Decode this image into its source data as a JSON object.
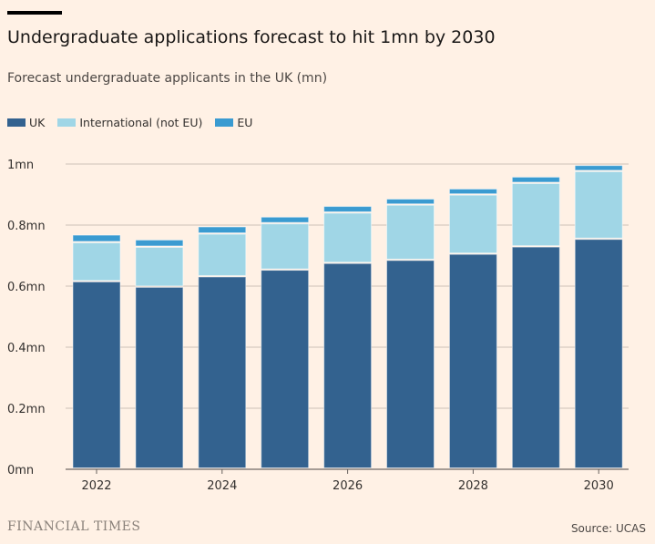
{
  "title": "Undergraduate applications forecast to hit 1mn by 2030",
  "subtitle": "Forecast undergraduate applicants in the UK (mn)",
  "footer": {
    "brand": "FINANCIAL TIMES",
    "source": "Source: UCAS"
  },
  "chart_data": {
    "type": "bar",
    "stacked": true,
    "categories": [
      "2022",
      "2023",
      "2024",
      "2025",
      "2026",
      "2027",
      "2028",
      "2029",
      "2030"
    ],
    "x_tick_labels": [
      "2022",
      "2024",
      "2026",
      "2028",
      "2030"
    ],
    "series": [
      {
        "name": "UK",
        "color": "#33628f",
        "values": [
          0.614,
          0.596,
          0.63,
          0.652,
          0.674,
          0.684,
          0.704,
          0.728,
          0.753
        ]
      },
      {
        "name": "International (not EU)",
        "color": "#a0d6e6",
        "values": [
          0.128,
          0.131,
          0.14,
          0.152,
          0.165,
          0.181,
          0.194,
          0.208,
          0.222
        ]
      },
      {
        "name": "EU",
        "color": "#3a9bd1",
        "values": [
          0.025,
          0.024,
          0.024,
          0.022,
          0.022,
          0.02,
          0.02,
          0.021,
          0.02
        ]
      }
    ],
    "ylim": [
      0,
      1
    ],
    "y_ticks": [
      0,
      0.2,
      0.4,
      0.6,
      0.8,
      1
    ],
    "y_tick_labels": [
      "0mn",
      "0.2mn",
      "0.4mn",
      "0.6mn",
      "0.8mn",
      "1mn"
    ],
    "grid": true,
    "legend": "top-left"
  }
}
